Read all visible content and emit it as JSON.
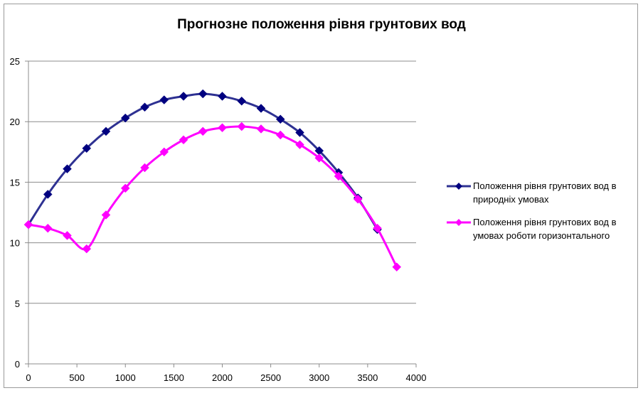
{
  "chart_data": {
    "type": "line",
    "title": "Прогнозне положення рівня грунтових вод",
    "xlabel": "",
    "ylabel": "",
    "xlim": [
      0,
      4000
    ],
    "ylim": [
      0,
      25
    ],
    "x_ticks": [
      0,
      500,
      1000,
      1500,
      2000,
      2500,
      3000,
      3500,
      4000
    ],
    "y_ticks": [
      0,
      5,
      10,
      15,
      20,
      25
    ],
    "grid": "horizontal",
    "legend_position": "right",
    "series": [
      {
        "name": "Положення рівня грунтових вод в природніх умовах",
        "color": "#2E3192",
        "marker_color": "#000080",
        "marker": "diamond",
        "points": [
          [
            0,
            11.5
          ],
          [
            200,
            14.0
          ],
          [
            400,
            16.1
          ],
          [
            600,
            17.8
          ],
          [
            800,
            19.2
          ],
          [
            1000,
            20.3
          ],
          [
            1200,
            21.2
          ],
          [
            1400,
            21.8
          ],
          [
            1600,
            22.1
          ],
          [
            1800,
            22.3
          ],
          [
            2000,
            22.1
          ],
          [
            2200,
            21.7
          ],
          [
            2400,
            21.1
          ],
          [
            2600,
            20.2
          ],
          [
            2800,
            19.1
          ],
          [
            3000,
            17.6
          ],
          [
            3200,
            15.8
          ],
          [
            3400,
            13.7
          ],
          [
            3600,
            11.1
          ]
        ]
      },
      {
        "name": "Положення рівня грунтових вод в умовах роботи горизонтального",
        "color": "#FF00FF",
        "marker_color": "#FF00FF",
        "marker": "diamond",
        "points": [
          [
            0,
            11.5
          ],
          [
            200,
            11.2
          ],
          [
            400,
            10.6
          ],
          [
            600,
            9.5
          ],
          [
            800,
            12.3
          ],
          [
            1000,
            14.5
          ],
          [
            1200,
            16.2
          ],
          [
            1400,
            17.5
          ],
          [
            1600,
            18.5
          ],
          [
            1800,
            19.2
          ],
          [
            2000,
            19.5
          ],
          [
            2200,
            19.6
          ],
          [
            2400,
            19.4
          ],
          [
            2600,
            18.9
          ],
          [
            2800,
            18.1
          ],
          [
            3000,
            17.0
          ],
          [
            3200,
            15.5
          ],
          [
            3400,
            13.6
          ],
          [
            3600,
            11.2
          ],
          [
            3800,
            8.0
          ]
        ]
      }
    ],
    "legend": [
      [
        "Положення рівня грунтових вод в",
        "природніх умовах"
      ],
      [
        "Положення рівня грунтових вод в",
        "умовах роботи горизонтального"
      ]
    ]
  }
}
